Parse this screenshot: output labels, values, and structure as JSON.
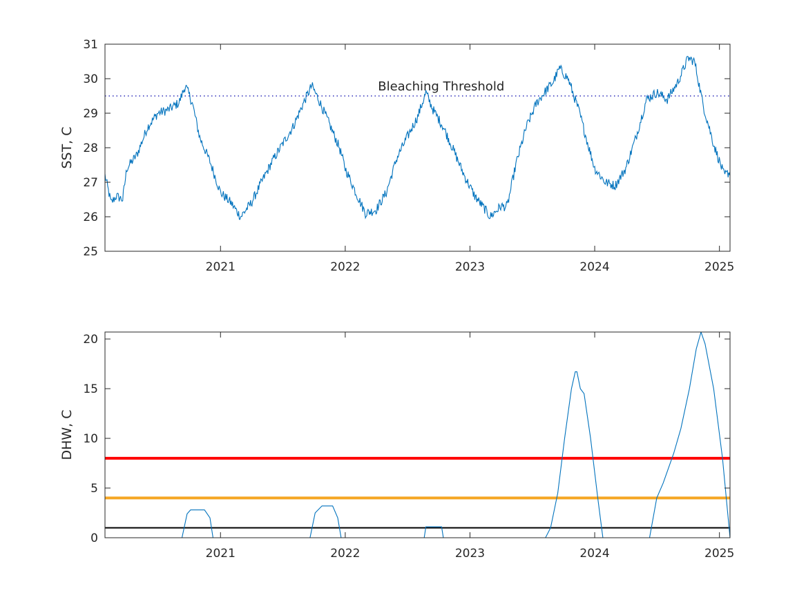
{
  "chart_data": [
    {
      "type": "line",
      "title": "",
      "xlabel": "",
      "ylabel": "SST, C",
      "xlim": [
        "2020-01-28",
        "2025-02-01"
      ],
      "ylim": [
        25,
        31
      ],
      "xticks": [
        "2021",
        "2022",
        "2023",
        "2024",
        "2025"
      ],
      "yticks": [
        "25",
        "26",
        "27",
        "28",
        "29",
        "30",
        "31"
      ],
      "grid": false,
      "series": [
        {
          "color": "#0072BD",
          "points": [
            [
              "2020-01-28",
              27.2
            ],
            [
              "2020-02-15",
              26.4
            ],
            [
              "2020-03-01",
              26.6
            ],
            [
              "2020-03-20",
              26.5
            ],
            [
              "2020-04-01",
              27.4
            ],
            [
              "2020-05-01",
              27.8
            ],
            [
              "2020-06-01",
              28.6
            ],
            [
              "2020-07-01",
              29.0
            ],
            [
              "2020-08-01",
              29.1
            ],
            [
              "2020-09-01",
              29.3
            ],
            [
              "2020-09-20",
              29.8
            ],
            [
              "2020-10-10",
              29.3
            ],
            [
              "2020-11-01",
              28.3
            ],
            [
              "2020-12-01",
              27.6
            ],
            [
              "2021-01-01",
              26.7
            ],
            [
              "2021-02-01",
              26.4
            ],
            [
              "2021-03-01",
              26.0
            ],
            [
              "2021-04-01",
              26.4
            ],
            [
              "2021-05-01",
              27.0
            ],
            [
              "2021-06-01",
              27.6
            ],
            [
              "2021-07-01",
              28.1
            ],
            [
              "2021-08-01",
              28.6
            ],
            [
              "2021-09-01",
              29.3
            ],
            [
              "2021-09-25",
              29.8
            ],
            [
              "2021-10-15",
              29.4
            ],
            [
              "2021-11-15",
              28.7
            ],
            [
              "2021-12-15",
              28.0
            ],
            [
              "2022-01-01",
              27.4
            ],
            [
              "2022-02-01",
              26.7
            ],
            [
              "2022-03-01",
              26.1
            ],
            [
              "2022-04-01",
              26.2
            ],
            [
              "2022-05-01",
              26.7
            ],
            [
              "2022-06-01",
              27.7
            ],
            [
              "2022-07-01",
              28.3
            ],
            [
              "2022-08-01",
              28.9
            ],
            [
              "2022-08-25",
              29.6
            ],
            [
              "2022-09-15",
              29.1
            ],
            [
              "2022-10-15",
              28.6
            ],
            [
              "2022-11-15",
              27.9
            ],
            [
              "2022-12-15",
              27.2
            ],
            [
              "2023-01-15",
              26.6
            ],
            [
              "2023-02-15",
              26.2
            ],
            [
              "2023-03-01",
              26.0
            ],
            [
              "2023-04-01",
              26.3
            ],
            [
              "2023-04-20",
              26.3
            ],
            [
              "2023-05-15",
              27.5
            ],
            [
              "2023-06-15",
              28.6
            ],
            [
              "2023-07-15",
              29.3
            ],
            [
              "2023-08-15",
              29.7
            ],
            [
              "2023-09-01",
              29.9
            ],
            [
              "2023-09-20",
              30.3
            ],
            [
              "2023-10-15",
              30.0
            ],
            [
              "2023-11-15",
              29.1
            ],
            [
              "2023-12-15",
              28.0
            ],
            [
              "2024-01-01",
              27.4
            ],
            [
              "2024-02-01",
              27.0
            ],
            [
              "2024-03-01",
              26.9
            ],
            [
              "2024-04-01",
              27.4
            ],
            [
              "2024-05-01",
              28.3
            ],
            [
              "2024-06-01",
              29.4
            ],
            [
              "2024-07-01",
              29.6
            ],
            [
              "2024-08-01",
              29.4
            ],
            [
              "2024-09-01",
              29.9
            ],
            [
              "2024-10-01",
              30.6
            ],
            [
              "2024-10-20",
              30.5
            ],
            [
              "2024-11-15",
              29.2
            ],
            [
              "2024-12-15",
              28.1
            ],
            [
              "2025-01-15",
              27.2
            ],
            [
              "2025-02-01",
              27.3
            ]
          ]
        }
      ],
      "reference_lines": [
        {
          "y": 29.5,
          "style": "dotted",
          "color": "#0000AA",
          "label": "Bleaching Threshold"
        }
      ]
    },
    {
      "type": "line",
      "title": "",
      "xlabel": "",
      "ylabel": "DHW, C",
      "xlim": [
        "2020-01-28",
        "2025-02-01"
      ],
      "ylim": [
        0,
        20.7
      ],
      "xticks": [
        "2021",
        "2022",
        "2023",
        "2024",
        "2025"
      ],
      "yticks": [
        "0",
        "5",
        "10",
        "15",
        "20"
      ],
      "grid": false,
      "series": [
        {
          "color": "#0072BD",
          "points": [
            [
              "2020-01-28",
              0
            ],
            [
              "2020-09-10",
              0
            ],
            [
              "2020-09-25",
              2.4
            ],
            [
              "2020-10-05",
              2.8
            ],
            [
              "2020-11-15",
              2.8
            ],
            [
              "2020-12-01",
              2.0
            ],
            [
              "2020-12-10",
              0
            ],
            [
              "2021-09-20",
              0
            ],
            [
              "2021-10-05",
              2.5
            ],
            [
              "2021-10-25",
              3.2
            ],
            [
              "2021-11-25",
              3.2
            ],
            [
              "2021-12-10",
              2.0
            ],
            [
              "2021-12-20",
              0
            ],
            [
              "2022-08-20",
              0
            ],
            [
              "2022-08-25",
              1.1
            ],
            [
              "2022-10-10",
              1.1
            ],
            [
              "2022-10-15",
              0
            ],
            [
              "2023-08-10",
              0
            ],
            [
              "2023-08-25",
              1.0
            ],
            [
              "2023-09-15",
              4.5
            ],
            [
              "2023-10-05",
              10.0
            ],
            [
              "2023-10-25",
              15.0
            ],
            [
              "2023-11-05",
              16.7
            ],
            [
              "2023-11-10",
              16.7
            ],
            [
              "2023-11-20",
              15.0
            ],
            [
              "2023-12-01",
              14.5
            ],
            [
              "2023-12-20",
              10.0
            ],
            [
              "2024-01-10",
              4.0
            ],
            [
              "2024-01-25",
              0
            ],
            [
              "2024-06-10",
              0
            ],
            [
              "2024-07-01",
              4.0
            ],
            [
              "2024-07-20",
              5.5
            ],
            [
              "2024-08-20",
              8.5
            ],
            [
              "2024-09-10",
              11.0
            ],
            [
              "2024-10-05",
              15.0
            ],
            [
              "2024-10-25",
              19.0
            ],
            [
              "2024-11-08",
              20.7
            ],
            [
              "2024-11-20",
              19.5
            ],
            [
              "2024-12-15",
              15.0
            ],
            [
              "2025-01-10",
              8.0
            ],
            [
              "2025-02-01",
              0
            ]
          ]
        }
      ],
      "reference_lines": [
        {
          "y": 8,
          "style": "solid",
          "color": "#FF0000",
          "width": "thick"
        },
        {
          "y": 4,
          "style": "solid",
          "color": "#F5A623",
          "width": "thick"
        },
        {
          "y": 1,
          "style": "solid",
          "color": "#000000",
          "width": "thin"
        }
      ]
    }
  ]
}
